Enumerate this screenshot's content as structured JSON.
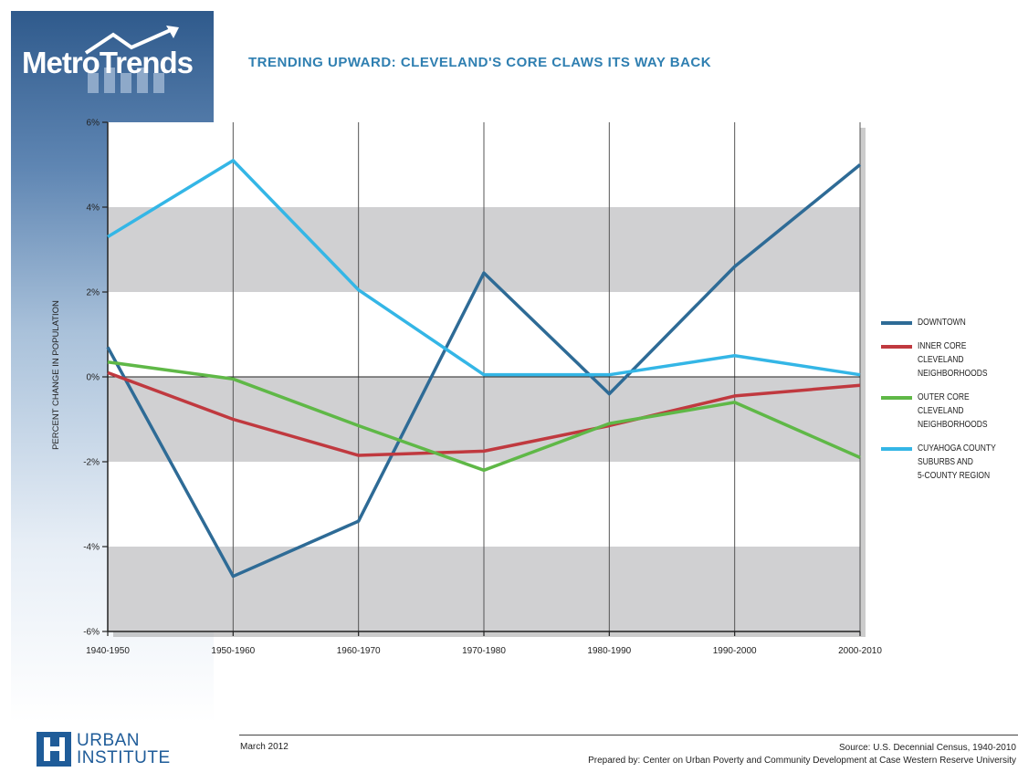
{
  "brand": {
    "logo_text": "MetroTrends"
  },
  "footer": {
    "date": "March 2012",
    "source": "Source: U.S. Decennial Census, 1940-2010",
    "prepared_by": "Prepared by: Center on Urban Poverty and Community Development at Case Western Reserve University",
    "org_line1": "URBAN",
    "org_line2": "INSTITUTE"
  },
  "colors": {
    "downtown": "#2e6b96",
    "inner_core": "#c0393f",
    "outer_core": "#5fb847",
    "suburbs": "#34b6e6",
    "band": "#d0d0d2",
    "brand_blue": "#2f5a8c"
  },
  "chart_data": {
    "type": "line",
    "title": "TRENDING UPWARD: CLEVELAND'S CORE CLAWS ITS WAY BACK",
    "xlabel": "",
    "ylabel": "PERCENT CHANGE IN POPULATION",
    "categories": [
      "1940-1950",
      "1950-1960",
      "1960-1970",
      "1970-1980",
      "1980-1990",
      "1990-2000",
      "2000-2010"
    ],
    "ylim": [
      -6,
      6
    ],
    "yticks": [
      6,
      4,
      2,
      0,
      -2,
      -4,
      -6
    ],
    "ytick_labels": [
      "6%",
      "4%",
      "2%",
      "0%",
      "-2%",
      "-4%",
      "-6%"
    ],
    "legend_position": "right",
    "series": [
      {
        "name": "DOWNTOWN",
        "color": "#2e6b96",
        "values": [
          0.7,
          -4.7,
          -3.4,
          2.45,
          -0.4,
          2.6,
          5.0
        ]
      },
      {
        "name": "INNER CORE\nCLEVELAND\nNEIGHBORHOODS",
        "color": "#c0393f",
        "values": [
          0.1,
          -1.0,
          -1.85,
          -1.75,
          -1.15,
          -0.45,
          -0.2
        ]
      },
      {
        "name": "OUTER CORE\nCLEVELAND\nNEIGHBORHOODS",
        "color": "#5fb847",
        "values": [
          0.35,
          -0.05,
          -1.15,
          -2.2,
          -1.1,
          -0.6,
          -1.9
        ]
      },
      {
        "name": "CUYAHOGA COUNTY\nSUBURBS AND\n5-COUNTY REGION",
        "color": "#34b6e6",
        "values": [
          3.3,
          5.1,
          2.05,
          0.05,
          0.05,
          0.5,
          0.05
        ]
      }
    ]
  }
}
